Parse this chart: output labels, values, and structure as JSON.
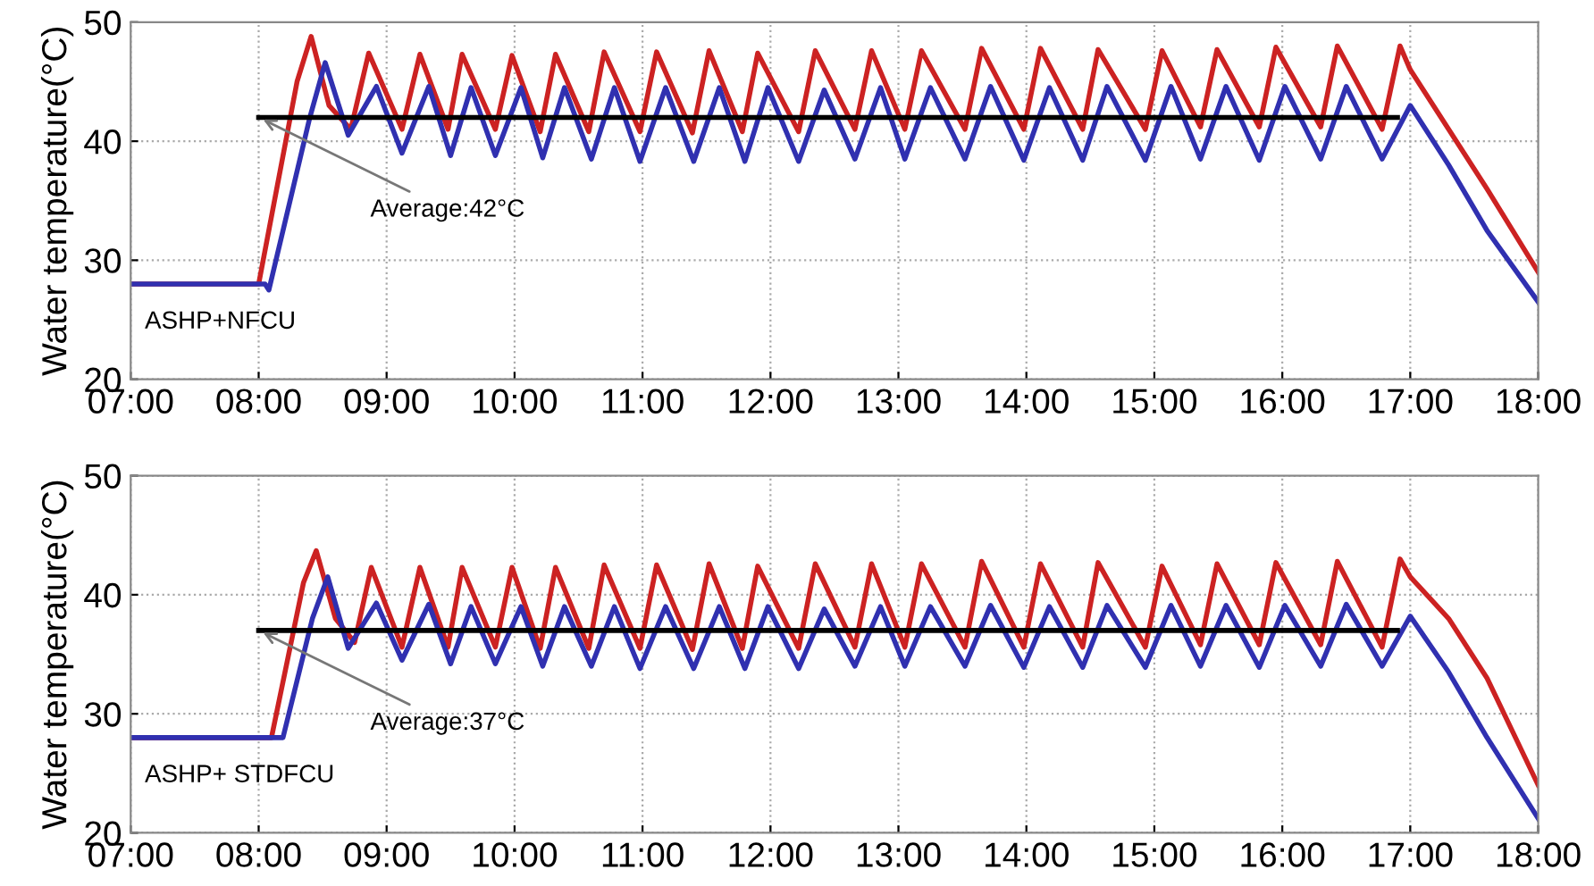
{
  "chart_data": [
    {
      "type": "line",
      "ylabel": "Water temperature(°C)",
      "xlim": [
        7,
        18
      ],
      "ylim": [
        20,
        50
      ],
      "yticks": [
        20,
        30,
        40,
        50
      ],
      "xticks": [
        {
          "value": 7,
          "label": "07:00"
        },
        {
          "value": 8,
          "label": "08:00"
        },
        {
          "value": 9,
          "label": "09:00"
        },
        {
          "value": 10,
          "label": "10:00"
        },
        {
          "value": 11,
          "label": "11:00"
        },
        {
          "value": 12,
          "label": "12:00"
        },
        {
          "value": 13,
          "label": "13:00"
        },
        {
          "value": 14,
          "label": "14:00"
        },
        {
          "value": 15,
          "label": "15:00"
        },
        {
          "value": 16,
          "label": "16:00"
        },
        {
          "value": 17,
          "label": "17:00"
        },
        {
          "value": 18,
          "label": "18:00"
        }
      ],
      "grid": true,
      "series": [
        {
          "color": "#cc2222",
          "x": [
            7,
            8.0,
            8.3,
            8.41,
            8.55,
            8.72,
            8.86,
            9.12,
            9.26,
            9.48,
            9.59,
            9.85,
            9.98,
            10.2,
            10.32,
            10.58,
            10.7,
            10.98,
            11.11,
            11.39,
            11.52,
            11.78,
            11.9,
            12.22,
            12.35,
            12.66,
            12.79,
            13.05,
            13.18,
            13.52,
            13.65,
            13.98,
            14.11,
            14.44,
            14.56,
            14.93,
            15.06,
            15.36,
            15.49,
            15.82,
            15.95,
            16.3,
            16.43,
            16.78,
            16.92,
            17.0,
            17.3,
            17.6,
            18.0
          ],
          "values": [
            28,
            28,
            45,
            48.8,
            43,
            41,
            47.4,
            41,
            47.3,
            41,
            47.3,
            41,
            47.2,
            40.8,
            47.3,
            40.8,
            47.5,
            40.8,
            47.5,
            40.7,
            47.6,
            40.8,
            47.4,
            40.8,
            47.6,
            41,
            47.6,
            41,
            47.6,
            41,
            47.8,
            41,
            47.8,
            41,
            47.7,
            41,
            47.6,
            41.2,
            47.7,
            41.2,
            47.9,
            41.2,
            48,
            41,
            48,
            46,
            41,
            36,
            29
          ]
        },
        {
          "color": "#3030b0",
          "x": [
            7,
            8.05,
            8.08,
            8.4,
            8.52,
            8.7,
            8.92,
            9.12,
            9.33,
            9.5,
            9.66,
            9.85,
            10.05,
            10.22,
            10.39,
            10.6,
            10.78,
            10.98,
            11.18,
            11.4,
            11.6,
            11.8,
            11.98,
            12.22,
            12.42,
            12.66,
            12.86,
            13.05,
            13.25,
            13.52,
            13.72,
            13.98,
            14.18,
            14.44,
            14.63,
            14.93,
            15.13,
            15.36,
            15.56,
            15.82,
            16.02,
            16.3,
            16.5,
            16.78,
            17.0,
            17.3,
            17.6,
            18.0
          ],
          "values": [
            28,
            28,
            27.5,
            42,
            46.6,
            40.5,
            44.6,
            39,
            44.6,
            38.8,
            44.5,
            38.8,
            44.5,
            38.6,
            44.5,
            38.5,
            44.5,
            38.3,
            44.5,
            38.3,
            44.5,
            38.3,
            44.5,
            38.3,
            44.3,
            38.5,
            44.5,
            38.5,
            44.5,
            38.5,
            44.6,
            38.4,
            44.5,
            38.4,
            44.6,
            38.4,
            44.6,
            38.5,
            44.6,
            38.4,
            44.6,
            38.5,
            44.6,
            38.5,
            43,
            38,
            32.5,
            26.5
          ]
        },
        {
          "color": "#000000",
          "x": [
            8,
            16.9
          ],
          "values": [
            42,
            42
          ]
        }
      ],
      "annotations": [
        {
          "text": "Average:42°C",
          "x": 8,
          "y": 42
        },
        "ASHP+NFCU"
      ]
    },
    {
      "type": "line",
      "ylabel": "Water temperature(°C)",
      "xlim": [
        7,
        18
      ],
      "ylim": [
        20,
        50
      ],
      "yticks": [
        20,
        30,
        40,
        50
      ],
      "xticks": [
        {
          "value": 7,
          "label": "07:00"
        },
        {
          "value": 8,
          "label": "08:00"
        },
        {
          "value": 9,
          "label": "09:00"
        },
        {
          "value": 10,
          "label": "10:00"
        },
        {
          "value": 11,
          "label": "11:00"
        },
        {
          "value": 12,
          "label": "12:00"
        },
        {
          "value": 13,
          "label": "13:00"
        },
        {
          "value": 14,
          "label": "14:00"
        },
        {
          "value": 15,
          "label": "15:00"
        },
        {
          "value": 16,
          "label": "16:00"
        },
        {
          "value": 17,
          "label": "17:00"
        },
        {
          "value": 18,
          "label": "18:00"
        }
      ],
      "grid": true,
      "series": [
        {
          "color": "#cc2222",
          "x": [
            7,
            8.1,
            8.35,
            8.45,
            8.6,
            8.75,
            8.88,
            9.12,
            9.26,
            9.48,
            9.59,
            9.85,
            9.98,
            10.2,
            10.32,
            10.58,
            10.7,
            10.98,
            11.11,
            11.39,
            11.52,
            11.78,
            11.9,
            12.22,
            12.35,
            12.66,
            12.79,
            13.05,
            13.18,
            13.52,
            13.65,
            13.98,
            14.11,
            14.44,
            14.56,
            14.93,
            15.06,
            15.36,
            15.49,
            15.82,
            15.95,
            16.3,
            16.43,
            16.78,
            16.92,
            17.0,
            17.3,
            17.6,
            18.0
          ],
          "values": [
            28,
            28,
            41,
            43.7,
            38,
            36,
            42.3,
            35.6,
            42.3,
            35.6,
            42.3,
            35.6,
            42.3,
            35.5,
            42.3,
            35.5,
            42.5,
            35.5,
            42.5,
            35.4,
            42.6,
            35.5,
            42.4,
            35.5,
            42.6,
            35.6,
            42.6,
            35.6,
            42.6,
            35.6,
            42.8,
            35.6,
            42.6,
            35.6,
            42.7,
            35.6,
            42.4,
            35.8,
            42.6,
            35.8,
            42.7,
            35.8,
            42.8,
            35.6,
            43,
            41.5,
            38,
            33,
            24
          ]
        },
        {
          "color": "#3030b0",
          "x": [
            7,
            8.19,
            8.42,
            8.54,
            8.7,
            8.92,
            9.12,
            9.33,
            9.5,
            9.66,
            9.85,
            10.05,
            10.22,
            10.39,
            10.6,
            10.78,
            10.98,
            11.18,
            11.4,
            11.6,
            11.8,
            11.98,
            12.22,
            12.42,
            12.66,
            12.86,
            13.05,
            13.25,
            13.52,
            13.72,
            13.98,
            14.18,
            14.44,
            14.63,
            14.93,
            15.13,
            15.36,
            15.56,
            15.82,
            16.02,
            16.3,
            16.5,
            16.78,
            17.0,
            17.3,
            17.6,
            18.0
          ],
          "values": [
            28,
            28,
            38,
            41.5,
            35.5,
            39.3,
            34.5,
            39.2,
            34.2,
            39,
            34.2,
            39,
            34,
            39,
            34,
            39,
            33.8,
            39,
            33.8,
            39,
            33.8,
            39,
            33.8,
            38.8,
            34,
            39,
            34,
            39,
            34,
            39.1,
            33.9,
            39,
            33.9,
            39.1,
            33.9,
            39.1,
            34,
            39.1,
            33.9,
            39.1,
            34,
            39.2,
            34,
            38.2,
            33.5,
            28,
            21.2
          ]
        },
        {
          "color": "#000000",
          "x": [
            8,
            16.9
          ],
          "values": [
            37,
            37
          ]
        }
      ],
      "annotations": [
        {
          "text": "Average:37°C",
          "x": 8,
          "y": 37
        },
        "ASHP+ STDFCU"
      ]
    }
  ]
}
